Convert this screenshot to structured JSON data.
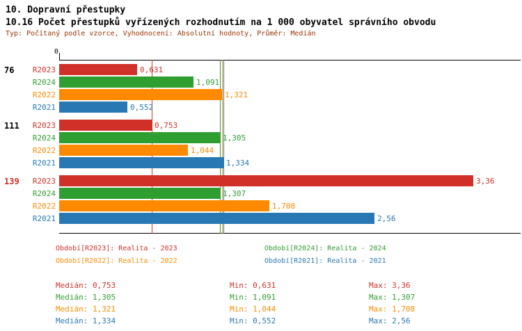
{
  "header": {
    "title": "10. Dopravní přestupky",
    "subtitle": "10.16 Počet přestupků vyřízených rozhodnutím na 1 000 obyvatel správního obvodu",
    "meta": "Typ: Počítaný podle vzorce, Vyhodnocení: Absolutní hodnoty, Průměr: Medián"
  },
  "colors": {
    "R2023": "#d03028",
    "R2024": "#2f9e30",
    "R2022": "#ff8a00",
    "R2021": "#2878b4",
    "meta_text": "#993300",
    "axis": "#000000"
  },
  "chart_data": {
    "type": "bar",
    "orientation": "horizontal",
    "axis_zero_label": "0",
    "xlim": [
      0,
      3.6
    ],
    "series_order": [
      "R2023",
      "R2024",
      "R2022",
      "R2021"
    ],
    "groups": [
      {
        "label": "76",
        "label_color": "#000000",
        "bars": [
          {
            "series": "R2023",
            "value": 0.631,
            "label": "0,631"
          },
          {
            "series": "R2024",
            "value": 1.091,
            "label": "1,091"
          },
          {
            "series": "R2022",
            "value": 1.321,
            "label": "1,321"
          },
          {
            "series": "R2021",
            "value": 0.552,
            "label": "0,552"
          }
        ]
      },
      {
        "label": "111",
        "label_color": "#000000",
        "bars": [
          {
            "series": "R2023",
            "value": 0.753,
            "label": "0,753"
          },
          {
            "series": "R2024",
            "value": 1.305,
            "label": "1,305"
          },
          {
            "series": "R2022",
            "value": 1.044,
            "label": "1,044"
          },
          {
            "series": "R2021",
            "value": 1.334,
            "label": "1,334"
          }
        ]
      },
      {
        "label": "139",
        "label_color": "#d03028",
        "bars": [
          {
            "series": "R2023",
            "value": 3.36,
            "label": "3,36"
          },
          {
            "series": "R2024",
            "value": 1.307,
            "label": "1,307"
          },
          {
            "series": "R2022",
            "value": 1.708,
            "label": "1,708"
          },
          {
            "series": "R2021",
            "value": 2.56,
            "label": "2,56"
          }
        ]
      }
    ],
    "medians": {
      "R2023": 0.753,
      "R2024": 1.305,
      "R2022": 1.321,
      "R2021": 1.334
    }
  },
  "legend": [
    {
      "series": "R2023",
      "label": "Období[R2023]: Realita - 2023"
    },
    {
      "series": "R2024",
      "label": "Období[R2024]: Realita - 2024"
    },
    {
      "series": "R2022",
      "label": "Období[R2022]: Realita - 2022"
    },
    {
      "series": "R2021",
      "label": "Období[R2021]: Realita - 2021"
    }
  ],
  "stats": [
    {
      "series": "R2023",
      "median": "Medián: 0,753",
      "min": "Min: 0,631",
      "max": "Max: 3,36"
    },
    {
      "series": "R2024",
      "median": "Medián: 1,305",
      "min": "Min: 1,091",
      "max": "Max: 1,307"
    },
    {
      "series": "R2022",
      "median": "Medián: 1,321",
      "min": "Min: 1,044",
      "max": "Max: 1,708"
    },
    {
      "series": "R2021",
      "median": "Medián: 1,334",
      "min": "Min: 0,552",
      "max": "Max: 2,56"
    }
  ]
}
